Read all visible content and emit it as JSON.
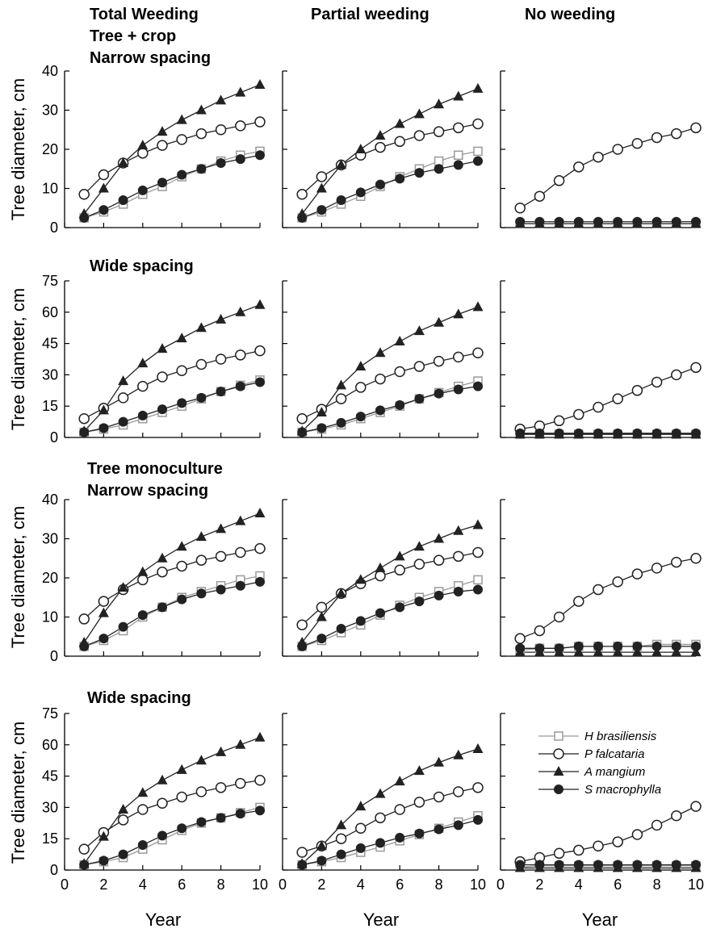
{
  "column_titles": [
    "Total Weeding",
    "Partial weeding",
    "No weeding"
  ],
  "row_titles": [
    [
      "Tree + crop",
      "Narrow spacing"
    ],
    [
      "Wide spacing"
    ],
    [
      "Tree monoculture",
      "Narrow spacing"
    ],
    [
      "Wide spacing"
    ]
  ],
  "ylabel": "Tree diameter, cm",
  "xlabel": "Year",
  "colors": {
    "line": "#222222",
    "hb": "#9a9a9a",
    "axis": "#000000"
  },
  "legend": [
    {
      "key": "hb",
      "label": "H brasiliensis",
      "marker": "open-square"
    },
    {
      "key": "pf",
      "label": "P falcataria",
      "marker": "open-circle"
    },
    {
      "key": "am",
      "label": "A mangium",
      "marker": "filled-triangle"
    },
    {
      "key": "sm",
      "label": "S macrophylla",
      "marker": "filled-circle"
    }
  ],
  "chart_data": [
    {
      "type": "line",
      "row": 0,
      "col": 0,
      "xlim": [
        0,
        10
      ],
      "ylim": [
        0,
        40
      ],
      "yticks": [
        0,
        10,
        20,
        30,
        40
      ],
      "xticks": [
        0,
        2,
        4,
        6,
        8,
        10
      ],
      "x": [
        1,
        2,
        3,
        4,
        5,
        6,
        7,
        8,
        9,
        10
      ],
      "series": [
        {
          "key": "hb",
          "values": [
            2.5,
            4,
            6,
            8.5,
            10.5,
            13,
            15,
            17,
            18.5,
            19.5
          ]
        },
        {
          "key": "pf",
          "values": [
            8.5,
            13.5,
            16.5,
            19,
            21,
            22.5,
            24,
            25,
            26,
            27
          ]
        },
        {
          "key": "am",
          "values": [
            3.5,
            10,
            16.5,
            21,
            24.5,
            27.5,
            30,
            32.5,
            34.5,
            36.5
          ]
        },
        {
          "key": "sm",
          "values": [
            2.5,
            4.5,
            7,
            9.5,
            11.5,
            13.5,
            15,
            16.5,
            17.5,
            18.5
          ]
        }
      ]
    },
    {
      "type": "line",
      "row": 0,
      "col": 1,
      "xlim": [
        0,
        10
      ],
      "ylim": [
        0,
        40
      ],
      "yticks": [
        0,
        10,
        20,
        30,
        40
      ],
      "xticks": [
        0,
        2,
        4,
        6,
        8,
        10
      ],
      "x": [
        1,
        2,
        3,
        4,
        5,
        6,
        7,
        8,
        9,
        10
      ],
      "series": [
        {
          "key": "hb",
          "values": [
            2.5,
            4,
            6,
            8,
            10.5,
            13,
            15,
            17,
            18.5,
            19.5
          ]
        },
        {
          "key": "pf",
          "values": [
            8.5,
            13,
            16,
            18.5,
            20.5,
            22,
            23.5,
            24.5,
            25.5,
            26.5
          ]
        },
        {
          "key": "am",
          "values": [
            3.5,
            10,
            16,
            20,
            23.5,
            26.5,
            29,
            31.5,
            33.5,
            35.5
          ]
        },
        {
          "key": "sm",
          "values": [
            2.5,
            4.5,
            7,
            9,
            11,
            12.5,
            14,
            15,
            16,
            17
          ]
        }
      ]
    },
    {
      "type": "line",
      "row": 0,
      "col": 2,
      "xlim": [
        0,
        10
      ],
      "ylim": [
        0,
        40
      ],
      "yticks": [
        0,
        10,
        20,
        30,
        40
      ],
      "xticks": [
        0,
        2,
        4,
        6,
        8,
        10
      ],
      "x": [
        1,
        2,
        3,
        4,
        5,
        6,
        7,
        8,
        9,
        10
      ],
      "series": [
        {
          "key": "hb",
          "values": [
            1,
            1,
            1,
            1,
            1,
            1,
            1,
            1,
            1,
            1
          ]
        },
        {
          "key": "pf",
          "values": [
            5,
            8,
            12,
            15.5,
            18,
            20,
            21.5,
            23,
            24,
            25.5
          ]
        },
        {
          "key": "am",
          "values": [
            1,
            1,
            1,
            1,
            1,
            1,
            1,
            1,
            1,
            1
          ]
        },
        {
          "key": "sm",
          "values": [
            1.5,
            1.5,
            1.5,
            1.5,
            1.5,
            1.5,
            1.5,
            1.5,
            1.5,
            1.5
          ]
        }
      ]
    },
    {
      "type": "line",
      "row": 1,
      "col": 0,
      "xlim": [
        0,
        10
      ],
      "ylim": [
        0,
        75
      ],
      "yticks": [
        0,
        15,
        30,
        45,
        60,
        75
      ],
      "xticks": [
        0,
        2,
        4,
        6,
        8,
        10
      ],
      "x": [
        1,
        2,
        3,
        4,
        5,
        6,
        7,
        8,
        9,
        10
      ],
      "series": [
        {
          "key": "hb",
          "values": [
            2.5,
            4,
            6,
            9,
            12,
            15,
            18.5,
            22,
            25,
            27.5
          ]
        },
        {
          "key": "pf",
          "values": [
            9,
            14,
            19,
            24.5,
            29,
            32,
            35,
            37.5,
            39.5,
            41.5
          ]
        },
        {
          "key": "am",
          "values": [
            3,
            13,
            27,
            35.5,
            42.5,
            47.5,
            52.5,
            56.5,
            60,
            63.5
          ]
        },
        {
          "key": "sm",
          "values": [
            2.5,
            4.5,
            7.5,
            10.5,
            13.5,
            16.5,
            19,
            22,
            24.5,
            26.5
          ]
        }
      ]
    },
    {
      "type": "line",
      "row": 1,
      "col": 1,
      "xlim": [
        0,
        10
      ],
      "ylim": [
        0,
        75
      ],
      "yticks": [
        0,
        15,
        30,
        45,
        60,
        75
      ],
      "xticks": [
        0,
        2,
        4,
        6,
        8,
        10
      ],
      "x": [
        1,
        2,
        3,
        4,
        5,
        6,
        7,
        8,
        9,
        10
      ],
      "series": [
        {
          "key": "hb",
          "values": [
            2.5,
            4,
            6,
            9,
            12,
            15,
            18.5,
            21.5,
            24.5,
            27
          ]
        },
        {
          "key": "pf",
          "values": [
            9,
            13.5,
            18.5,
            24,
            28,
            31.5,
            34,
            36.5,
            38.5,
            40.5
          ]
        },
        {
          "key": "am",
          "values": [
            3,
            12,
            25,
            34,
            40.5,
            46,
            51,
            55,
            59,
            62.5
          ]
        },
        {
          "key": "sm",
          "values": [
            2.5,
            4.5,
            7,
            10,
            13,
            15.5,
            18.5,
            21,
            23,
            24.5
          ]
        }
      ]
    },
    {
      "type": "line",
      "row": 1,
      "col": 2,
      "xlim": [
        0,
        10
      ],
      "ylim": [
        0,
        75
      ],
      "yticks": [
        0,
        15,
        30,
        45,
        60,
        75
      ],
      "xticks": [
        0,
        2,
        4,
        6,
        8,
        10
      ],
      "x": [
        1,
        2,
        3,
        4,
        5,
        6,
        7,
        8,
        9,
        10
      ],
      "series": [
        {
          "key": "hb",
          "values": [
            1.5,
            1.5,
            1.5,
            1.5,
            1.5,
            1.5,
            1.5,
            1.5,
            1.5,
            1.5
          ]
        },
        {
          "key": "pf",
          "values": [
            4,
            5.5,
            8,
            11,
            14.5,
            18.5,
            22.5,
            26.5,
            30,
            33.5
          ]
        },
        {
          "key": "am",
          "values": [
            1.5,
            1.5,
            1.5,
            1.5,
            1.5,
            1.5,
            1.5,
            1.5,
            1.5,
            1.5
          ]
        },
        {
          "key": "sm",
          "values": [
            2,
            2,
            2,
            2,
            2,
            2,
            2,
            2,
            2,
            2
          ]
        }
      ]
    },
    {
      "type": "line",
      "row": 2,
      "col": 0,
      "xlim": [
        0,
        10
      ],
      "ylim": [
        0,
        40
      ],
      "yticks": [
        0,
        10,
        20,
        30,
        40
      ],
      "xticks": [
        0,
        2,
        4,
        6,
        8,
        10
      ],
      "x": [
        1,
        2,
        3,
        4,
        5,
        6,
        7,
        8,
        9,
        10
      ],
      "series": [
        {
          "key": "hb",
          "values": [
            2.5,
            4,
            6.5,
            10,
            12.5,
            15,
            16.5,
            18,
            19.5,
            20.5
          ]
        },
        {
          "key": "pf",
          "values": [
            9.5,
            14,
            17,
            19.5,
            21.5,
            23,
            24.5,
            25.5,
            26.5,
            27.5
          ]
        },
        {
          "key": "am",
          "values": [
            3.5,
            11,
            17.5,
            21.5,
            25,
            28,
            30.5,
            32.5,
            34.5,
            36.5
          ]
        },
        {
          "key": "sm",
          "values": [
            2.5,
            4.5,
            7.5,
            10.5,
            12.5,
            14.5,
            16,
            17,
            18,
            19
          ]
        }
      ]
    },
    {
      "type": "line",
      "row": 2,
      "col": 1,
      "xlim": [
        0,
        10
      ],
      "ylim": [
        0,
        40
      ],
      "yticks": [
        0,
        10,
        20,
        30,
        40
      ],
      "xticks": [
        0,
        2,
        4,
        6,
        8,
        10
      ],
      "x": [
        1,
        2,
        3,
        4,
        5,
        6,
        7,
        8,
        9,
        10
      ],
      "series": [
        {
          "key": "hb",
          "values": [
            2.5,
            4,
            6,
            8,
            10.5,
            13,
            15,
            16.5,
            18,
            19.5
          ]
        },
        {
          "key": "pf",
          "values": [
            8,
            12.5,
            16,
            18.5,
            20.5,
            22,
            23.5,
            24.5,
            25.5,
            26.5
          ]
        },
        {
          "key": "am",
          "values": [
            3.5,
            10,
            16,
            19.5,
            22.5,
            25.5,
            28,
            30,
            32,
            33.5
          ]
        },
        {
          "key": "sm",
          "values": [
            2.5,
            4.5,
            7,
            9,
            11,
            12.5,
            14,
            15.5,
            16.5,
            17
          ]
        }
      ]
    },
    {
      "type": "line",
      "row": 2,
      "col": 2,
      "xlim": [
        0,
        10
      ],
      "ylim": [
        0,
        40
      ],
      "yticks": [
        0,
        10,
        20,
        30,
        40
      ],
      "xticks": [
        0,
        2,
        4,
        6,
        8,
        10
      ],
      "x": [
        1,
        2,
        3,
        4,
        5,
        6,
        7,
        8,
        9,
        10
      ],
      "series": [
        {
          "key": "hb",
          "values": [
            1.5,
            2,
            2,
            2.5,
            2.5,
            2.5,
            2.5,
            3,
            3,
            3
          ]
        },
        {
          "key": "pf",
          "values": [
            4.5,
            6.5,
            10,
            14,
            17,
            19,
            21,
            22.5,
            24,
            25
          ]
        },
        {
          "key": "am",
          "values": [
            1,
            1,
            1,
            1,
            1,
            1,
            1,
            1,
            1,
            1
          ]
        },
        {
          "key": "sm",
          "values": [
            2,
            2,
            2,
            2.5,
            2.5,
            2.5,
            2.5,
            2.5,
            2.5,
            2.5
          ]
        }
      ]
    },
    {
      "type": "line",
      "row": 3,
      "col": 0,
      "xlim": [
        0,
        10
      ],
      "ylim": [
        0,
        75
      ],
      "yticks": [
        0,
        15,
        30,
        45,
        60,
        75
      ],
      "xticks": [
        0,
        2,
        4,
        6,
        8,
        10
      ],
      "x": [
        1,
        2,
        3,
        4,
        5,
        6,
        7,
        8,
        9,
        10
      ],
      "series": [
        {
          "key": "hb",
          "values": [
            2.5,
            4,
            6,
            10,
            14.5,
            19,
            22.5,
            25,
            27.5,
            30
          ]
        },
        {
          "key": "pf",
          "values": [
            10,
            18,
            24,
            29,
            32,
            35,
            37.5,
            39.5,
            41.5,
            43
          ]
        },
        {
          "key": "am",
          "values": [
            3,
            16,
            29,
            37,
            43,
            48,
            52.5,
            56.5,
            60,
            63.5
          ]
        },
        {
          "key": "sm",
          "values": [
            2.5,
            4.5,
            7.5,
            12,
            16.5,
            20,
            23,
            25,
            27,
            28.5
          ]
        }
      ]
    },
    {
      "type": "line",
      "row": 3,
      "col": 1,
      "xlim": [
        0,
        10
      ],
      "ylim": [
        0,
        75
      ],
      "yticks": [
        0,
        15,
        30,
        45,
        60,
        75
      ],
      "xticks": [
        0,
        2,
        4,
        6,
        8,
        10
      ],
      "x": [
        1,
        2,
        3,
        4,
        5,
        6,
        7,
        8,
        9,
        10
      ],
      "series": [
        {
          "key": "hb",
          "values": [
            2.5,
            4,
            6,
            8.5,
            11,
            14,
            17,
            20,
            23,
            26
          ]
        },
        {
          "key": "pf",
          "values": [
            8.5,
            11.5,
            15,
            20,
            25,
            29,
            32.5,
            35,
            37.5,
            39.5
          ]
        },
        {
          "key": "am",
          "values": [
            3,
            11.5,
            21.5,
            30.5,
            36.5,
            42.5,
            47.5,
            51.5,
            55,
            58
          ]
        },
        {
          "key": "sm",
          "values": [
            2.5,
            4.5,
            7.5,
            10.5,
            13,
            15.5,
            17.5,
            19.5,
            21.5,
            24
          ]
        }
      ]
    },
    {
      "type": "line",
      "row": 3,
      "col": 2,
      "xlim": [
        0,
        10
      ],
      "ylim": [
        0,
        75
      ],
      "yticks": [
        0,
        15,
        30,
        45,
        60,
        75
      ],
      "xticks": [
        0,
        2,
        4,
        6,
        8,
        10
      ],
      "x": [
        1,
        2,
        3,
        4,
        5,
        6,
        7,
        8,
        9,
        10
      ],
      "series": [
        {
          "key": "hb",
          "values": [
            1.5,
            2,
            2,
            2,
            2,
            2,
            2,
            2,
            2,
            2
          ]
        },
        {
          "key": "pf",
          "values": [
            4,
            6,
            8,
            9.5,
            11.5,
            13.5,
            17,
            21.5,
            26,
            30.5
          ]
        },
        {
          "key": "am",
          "values": [
            1,
            1,
            1,
            1,
            1,
            1,
            1,
            1,
            1,
            1
          ]
        },
        {
          "key": "sm",
          "values": [
            2.5,
            2.5,
            2.5,
            2.5,
            2.5,
            2.5,
            2.5,
            2.5,
            2.5,
            2.5
          ]
        }
      ]
    }
  ]
}
